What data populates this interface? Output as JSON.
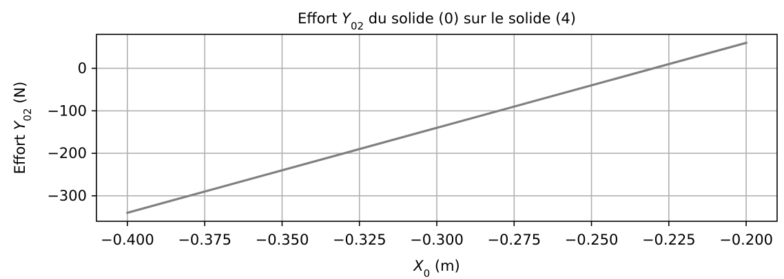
{
  "chart_data": {
    "type": "line",
    "title": [
      "Effort ",
      "Y",
      "02",
      " du solide (0) sur le solide (4)"
    ],
    "xlabel": [
      "X",
      "0",
      " (m)"
    ],
    "ylabel": [
      "Effort ",
      "Y",
      "02",
      " (N)"
    ],
    "x": [
      -0.4,
      -0.2
    ],
    "series": [
      {
        "name": null,
        "color": "#808080",
        "values": [
          -340,
          60
        ]
      }
    ],
    "xlim": [
      -0.41,
      -0.19
    ],
    "xticks": [
      {
        "value": -0.4,
        "label": "−0.400"
      },
      {
        "value": -0.375,
        "label": "−0.375"
      },
      {
        "value": -0.35,
        "label": "−0.350"
      },
      {
        "value": -0.325,
        "label": "−0.325"
      },
      {
        "value": -0.3,
        "label": "−0.300"
      },
      {
        "value": -0.275,
        "label": "−0.275"
      },
      {
        "value": -0.25,
        "label": "−0.250"
      },
      {
        "value": -0.225,
        "label": "−0.225"
      },
      {
        "value": -0.2,
        "label": "−0.200"
      }
    ],
    "ylim": [
      -360,
      80
    ],
    "yticks": [
      0,
      {
        "value": -100,
        "label": "−100"
      },
      {
        "value": -200,
        "label": "−200"
      },
      {
        "value": -300,
        "label": "−300"
      }
    ],
    "grid": true
  }
}
